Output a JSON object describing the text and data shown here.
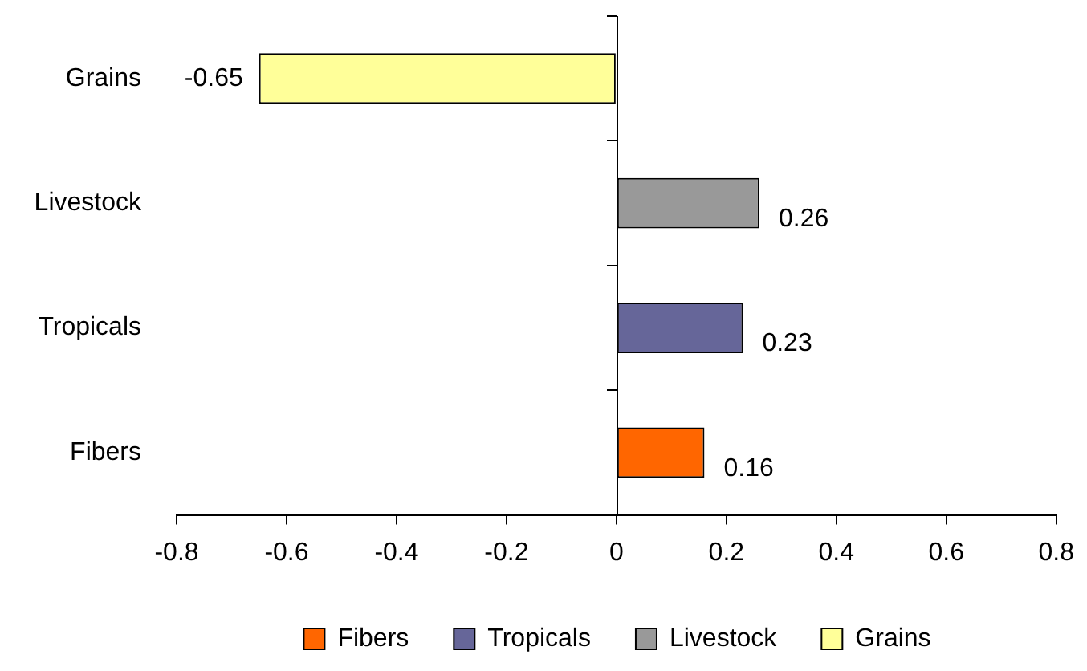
{
  "chart_data": {
    "type": "bar",
    "orientation": "horizontal",
    "categories": [
      "Grains",
      "Livestock",
      "Tropicals",
      "Fibers"
    ],
    "series": [
      {
        "name": "Fibers",
        "color": "#ff6600",
        "values": [
          null,
          null,
          null,
          0.16
        ]
      },
      {
        "name": "Tropicals",
        "color": "#666699",
        "values": [
          null,
          null,
          0.23,
          null
        ]
      },
      {
        "name": "Livestock",
        "color": "#999999",
        "values": [
          null,
          0.26,
          null,
          null
        ]
      },
      {
        "name": "Grains",
        "color": "#ffff99",
        "values": [
          -0.65,
          null,
          null,
          null
        ]
      }
    ],
    "xlim": [
      -0.8,
      0.8
    ],
    "xticks": [
      -0.8,
      -0.6,
      -0.4,
      -0.2,
      0,
      0.2,
      0.4,
      0.6,
      0.8
    ],
    "ref_lines": [
      {
        "axis": "x",
        "value": 0,
        "color": "#000000"
      }
    ],
    "grid": false,
    "legend": "bottom",
    "data_labels": true
  }
}
